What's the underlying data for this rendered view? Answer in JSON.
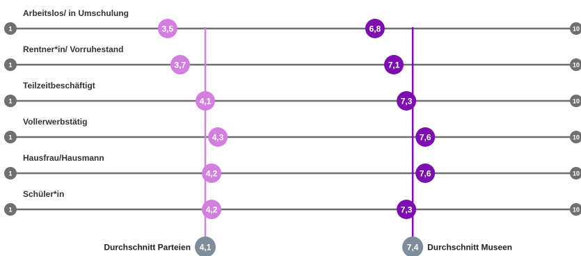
{
  "chart_data": {
    "type": "dot_plot",
    "scale": {
      "min": 1,
      "max": 10,
      "min_label": "1",
      "max_label": "10"
    },
    "series": [
      {
        "key": "parteien",
        "color": "#d37fe0"
      },
      {
        "key": "museen",
        "color": "#7d0fb0"
      }
    ],
    "rows": [
      {
        "label": "Arbeitslos/ in Umschulung",
        "parteien": 3.5,
        "parteien_label": "3,5",
        "museen": 6.8,
        "museen_label": "6,8"
      },
      {
        "label": "Rentner*in/ Vorruhestand",
        "parteien": 3.7,
        "parteien_label": "3,7",
        "museen": 7.1,
        "museen_label": "7,1"
      },
      {
        "label": "Teilzeitbeschäftigt",
        "parteien": 4.1,
        "parteien_label": "4,1",
        "museen": 7.3,
        "museen_label": "7,3"
      },
      {
        "label": "Vollerwerbstätig",
        "parteien": 4.3,
        "parteien_label": "4,3",
        "museen": 7.6,
        "museen_label": "7,6"
      },
      {
        "label": "Hausfrau/Hausmann",
        "parteien": 4.2,
        "parteien_label": "4,2",
        "museen": 7.6,
        "museen_label": "7,6"
      },
      {
        "label": "Schüler*in",
        "parteien": 4.2,
        "parteien_label": "4,2",
        "museen": 7.3,
        "museen_label": "7,3"
      }
    ],
    "averages": [
      {
        "key": "parteien",
        "label": "Durchschnitt Parteien",
        "value": 4.1,
        "value_label": "4,1",
        "label_side": "left"
      },
      {
        "key": "museen",
        "label": "Durchschnitt Museen",
        "value": 7.4,
        "value_label": "7,4",
        "label_side": "right"
      }
    ],
    "colors": {
      "axis_line": "#6f6f6f",
      "endpoint": "#6f6f6f",
      "average_marker": "#7f8c99"
    }
  }
}
